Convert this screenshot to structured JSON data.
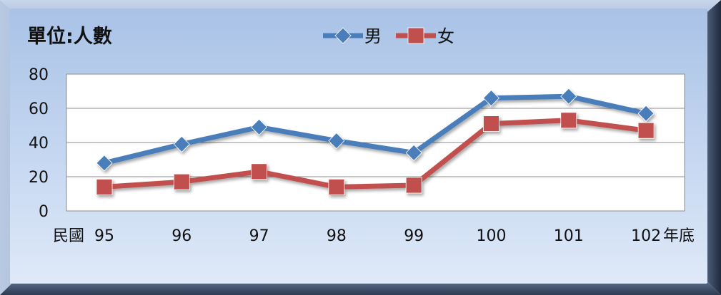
{
  "chart_data": {
    "type": "line",
    "title": "",
    "unit_label": "單位:人數",
    "x_prefix": "民國",
    "x_suffix": "年底",
    "categories": [
      "95",
      "96",
      "97",
      "98",
      "99",
      "100",
      "101",
      "102"
    ],
    "series": [
      {
        "name": "男",
        "color": "#4a7ebb",
        "marker": "diamond",
        "values": [
          28,
          39,
          49,
          41,
          34,
          66,
          67,
          57
        ]
      },
      {
        "name": "女",
        "color": "#c0504d",
        "marker": "square",
        "values": [
          14,
          17,
          23,
          14,
          15,
          51,
          53,
          47
        ]
      }
    ],
    "ylim": [
      0,
      80
    ],
    "yticks": [
      0,
      20,
      40,
      60,
      80
    ],
    "ytick_labels": [
      "0",
      "20",
      "40",
      "60",
      "80"
    ],
    "grid": true,
    "legend_position": "top-center"
  }
}
